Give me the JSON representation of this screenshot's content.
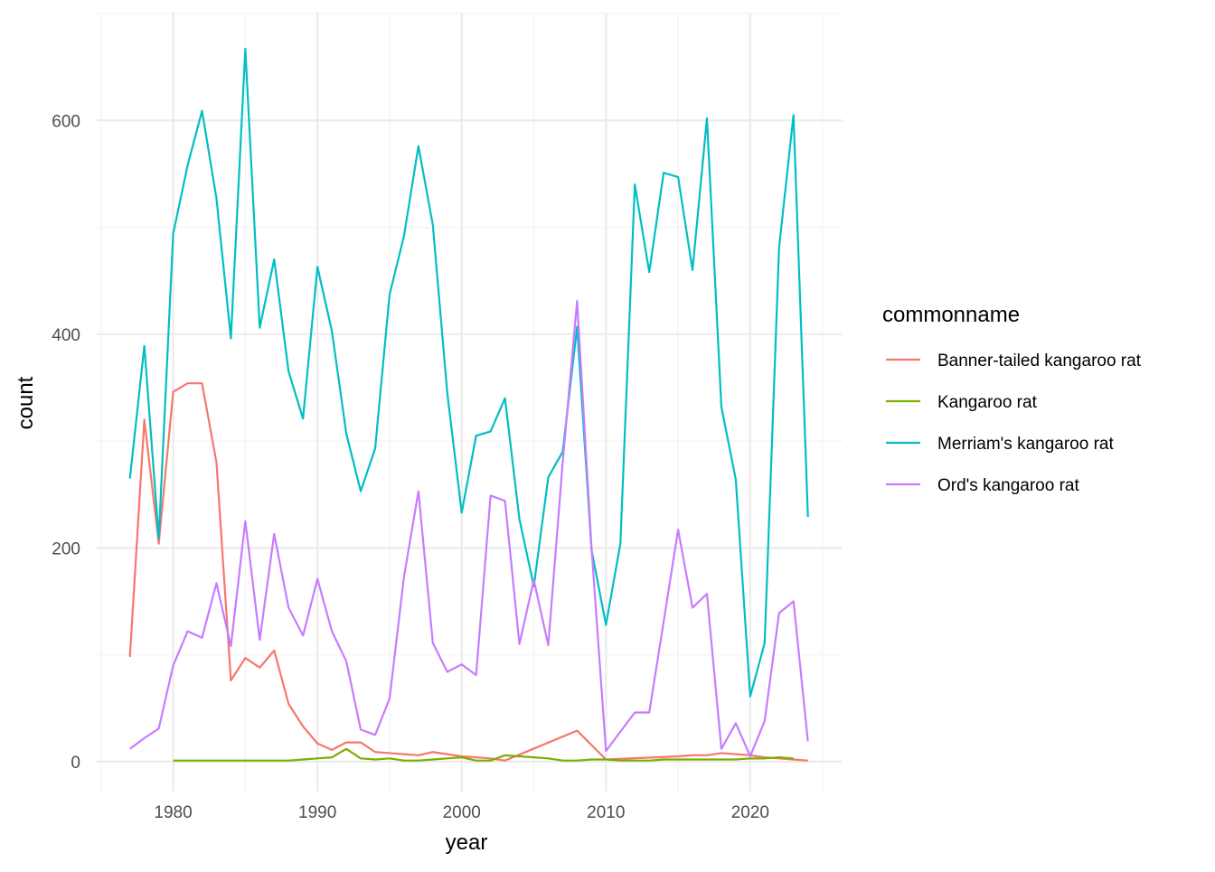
{
  "chart_data": {
    "type": "line",
    "title": "",
    "xlabel": "year",
    "ylabel": "count",
    "xlim": [
      1974.7,
      2026.4
    ],
    "ylim": [
      -28,
      700
    ],
    "x_ticks": [
      1980,
      1990,
      2000,
      2010,
      2020
    ],
    "y_ticks": [
      0,
      200,
      400,
      600
    ],
    "grid": true,
    "legend": {
      "title": "commonname",
      "position": "right"
    },
    "series": [
      {
        "name": "Banner-tailed kangaroo rat",
        "color": "#F8766D",
        "x": [
          1977,
          1978,
          1979,
          1980,
          1981,
          1982,
          1983,
          1984,
          1985,
          1986,
          1987,
          1988,
          1989,
          1990,
          1991,
          1992,
          1993,
          1994,
          1995,
          1996,
          1997,
          1998,
          1999,
          2000,
          2001,
          2002,
          2003,
          2008,
          2010,
          2015,
          2016,
          2017,
          2018,
          2019,
          2020,
          2021,
          2022,
          2023,
          2024
        ],
        "y": [
          98,
          320,
          204,
          346,
          354,
          354,
          280,
          76,
          97,
          88,
          104,
          54,
          33,
          17,
          11,
          18,
          18,
          9,
          8,
          7,
          6,
          9,
          7,
          5,
          4,
          3,
          1,
          29,
          2,
          5,
          6,
          6,
          8,
          7,
          6,
          4,
          3,
          2,
          1
        ]
      },
      {
        "name": "Kangaroo rat",
        "color": "#7CAE00",
        "x": [
          1980,
          1981,
          1982,
          1983,
          1984,
          1985,
          1986,
          1987,
          1988,
          1989,
          1990,
          1991,
          1992,
          1993,
          1994,
          1995,
          1996,
          1997,
          1998,
          1999,
          2000,
          2001,
          2002,
          2003,
          2004,
          2005,
          2006,
          2007,
          2008,
          2009,
          2010,
          2011,
          2012,
          2013,
          2014,
          2015,
          2016,
          2017,
          2018,
          2019,
          2020,
          2021,
          2022,
          2023
        ],
        "y": [
          1,
          1,
          1,
          1,
          1,
          1,
          1,
          1,
          1,
          2,
          3,
          4,
          12,
          3,
          2,
          3,
          1,
          1,
          2,
          3,
          4,
          1,
          1,
          6,
          5,
          4,
          3,
          1,
          1,
          2,
          2,
          1,
          1,
          1,
          2,
          2,
          2,
          2,
          2,
          2,
          3,
          3,
          4,
          3
        ]
      },
      {
        "name": "Merriam's kangaroo rat",
        "color": "#00BFC4",
        "x": [
          1977,
          1978,
          1979,
          1980,
          1981,
          1982,
          1983,
          1984,
          1985,
          1986,
          1987,
          1988,
          1989,
          1990,
          1991,
          1992,
          1993,
          1994,
          1995,
          1996,
          1997,
          1998,
          1999,
          2000,
          2001,
          2002,
          2003,
          2004,
          2005,
          2006,
          2007,
          2008,
          2009,
          2010,
          2011,
          2012,
          2013,
          2014,
          2015,
          2016,
          2017,
          2018,
          2019,
          2020,
          2021,
          2022,
          2023,
          2024
        ],
        "y": [
          265,
          389,
          209,
          494,
          558,
          609,
          527,
          396,
          667,
          406,
          470,
          365,
          321,
          463,
          403,
          307,
          253,
          293,
          437,
          492,
          576,
          502,
          345,
          233,
          305,
          309,
          340,
          227,
          164,
          266,
          290,
          407,
          198,
          128,
          204,
          540,
          458,
          551,
          547,
          460,
          602,
          332,
          264,
          61,
          111,
          481,
          605,
          229
        ]
      },
      {
        "name": "Ord's kangaroo rat",
        "color": "#C77CFF",
        "x": [
          1977,
          1978,
          1979,
          1980,
          1981,
          1982,
          1983,
          1984,
          1985,
          1986,
          1987,
          1988,
          1989,
          1990,
          1991,
          1992,
          1993,
          1994,
          1995,
          1996,
          1997,
          1998,
          1999,
          2000,
          2001,
          2002,
          2003,
          2004,
          2005,
          2006,
          2007,
          2008,
          2009,
          2010,
          2011,
          2012,
          2013,
          2014,
          2015,
          2016,
          2017,
          2018,
          2019,
          2020,
          2021,
          2022,
          2023,
          2024
        ],
        "y": [
          12,
          22,
          31,
          90,
          122,
          116,
          167,
          108,
          225,
          114,
          213,
          144,
          118,
          171,
          122,
          94,
          30,
          25,
          59,
          173,
          253,
          111,
          84,
          91,
          81,
          249,
          244,
          110,
          170,
          109,
          280,
          431,
          200,
          10,
          28,
          46,
          46,
          131,
          217,
          144,
          157,
          12,
          36,
          5,
          38,
          139,
          150,
          19
        ]
      }
    ]
  }
}
